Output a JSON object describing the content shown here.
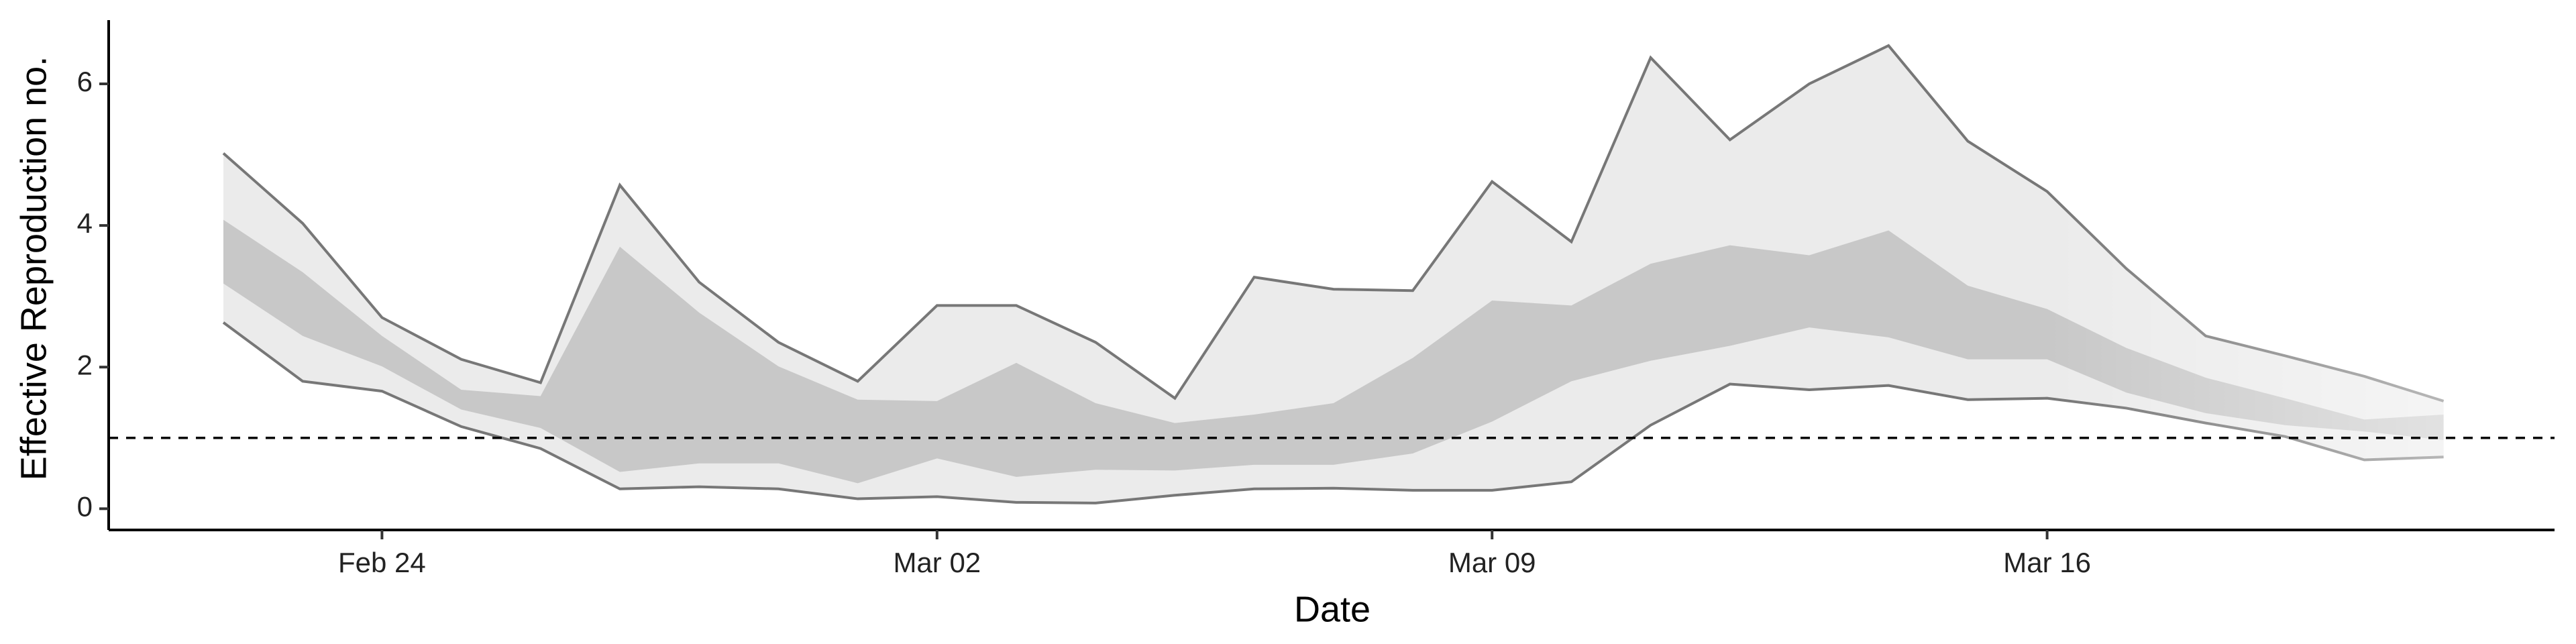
{
  "chart_data": {
    "type": "band",
    "x_label": "Date",
    "y_label": "Effective Reproduction no.",
    "categories": [
      "Feb 22",
      "Feb 23",
      "Feb 24",
      "Feb 25",
      "Feb 26",
      "Feb 27",
      "Feb 28",
      "Feb 29",
      "Mar 01",
      "Mar 02",
      "Mar 03",
      "Mar 04",
      "Mar 05",
      "Mar 06",
      "Mar 07",
      "Mar 08",
      "Mar 09",
      "Mar 10",
      "Mar 11",
      "Mar 12",
      "Mar 13",
      "Mar 14",
      "Mar 15",
      "Mar 16",
      "Mar 17",
      "Mar 18",
      "Mar 19",
      "Mar 20",
      "Mar 21"
    ],
    "bands": [
      {
        "color": "#ebebeb",
        "line_color": "#777777",
        "lower": [
          2.63,
          1.8,
          1.66,
          1.16,
          0.85,
          0.28,
          0.31,
          0.28,
          0.14,
          0.17,
          0.09,
          0.08,
          0.19,
          0.28,
          0.29,
          0.26,
          0.26,
          0.38,
          1.18,
          1.76,
          1.68,
          1.74,
          1.54,
          1.56,
          1.42,
          1.21,
          1.02,
          0.69,
          0.73
        ],
        "upper": [
          5.02,
          4.03,
          2.7,
          2.11,
          1.78,
          4.57,
          3.2,
          2.35,
          1.8,
          2.87,
          2.87,
          2.35,
          1.56,
          3.27,
          3.1,
          3.08,
          4.62,
          3.77,
          6.37,
          5.21,
          6.0,
          6.54,
          5.19,
          4.48,
          3.39,
          2.44,
          2.16,
          1.87,
          1.52
        ]
      },
      {
        "color": "#c8c8c8",
        "lower": [
          3.18,
          2.44,
          2.01,
          1.4,
          1.14,
          0.52,
          0.64,
          0.64,
          0.36,
          0.71,
          0.45,
          0.55,
          0.54,
          0.62,
          0.62,
          0.78,
          1.23,
          1.8,
          2.09,
          2.3,
          2.56,
          2.42,
          2.11,
          2.11,
          1.64,
          1.35,
          1.18,
          1.09,
          0.97
        ],
        "upper": [
          4.08,
          3.34,
          2.44,
          1.68,
          1.59,
          3.7,
          2.77,
          2.01,
          1.54,
          1.52,
          2.06,
          1.49,
          1.21,
          1.33,
          1.49,
          2.13,
          2.94,
          2.87,
          3.46,
          3.72,
          3.58,
          3.93,
          3.15,
          2.82,
          2.27,
          1.85,
          1.56,
          1.26,
          1.33
        ]
      }
    ],
    "reference_line": 1,
    "ylim": [
      -0.3,
      6.9
    ],
    "yticks": [
      0,
      2,
      4,
      6
    ],
    "xticks": [
      "Feb 24",
      "Mar 02",
      "Mar 09",
      "Mar 16"
    ],
    "grid": false
  }
}
